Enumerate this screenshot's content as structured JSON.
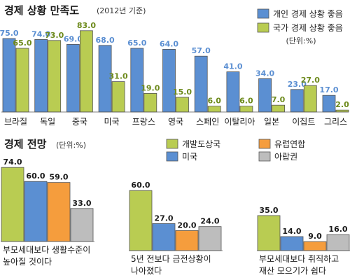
{
  "colors": {
    "personal": "#5b8fd2",
    "national": "#b9cc52",
    "developing": "#b9cc52",
    "us": "#5b8fd2",
    "eu": "#f59d3d",
    "arab": "#bdbdbd",
    "personal_label": "#5b8fd2",
    "national_label": "#6d8a1c",
    "eu_label": "#1a1a1a"
  },
  "chart_data": [
    {
      "type": "bar",
      "title": "경제 상황 만족도",
      "subtitle": "(2012년 기준)",
      "unit": "(단위:%)",
      "legend_position": "top-right",
      "categories": [
        "브라질",
        "독일",
        "중국",
        "미국",
        "프랑스",
        "영국",
        "스페인",
        "이탈리아",
        "일본",
        "이집트",
        "그리스"
      ],
      "series": [
        {
          "name": "개인 경제 상황 좋음",
          "values": [
            75.0,
            74.0,
            69.0,
            68.0,
            65.0,
            64.0,
            57.0,
            41.0,
            34.0,
            23.0,
            17.0
          ],
          "labels": [
            "75.0",
            "74.0",
            "69.0",
            "68.0",
            "65.0",
            "64.0",
            "57.0",
            "41.0",
            "34.0",
            "23.0",
            "17.0"
          ]
        },
        {
          "name": "국가 경제 상황 좋음",
          "values": [
            65.0,
            73.0,
            83.0,
            31.0,
            19.0,
            15.0,
            6.0,
            6.0,
            7.0,
            27.0,
            2.0
          ],
          "labels": [
            "65.0",
            "73.0",
            "83.0",
            "31.0",
            "19.0",
            "15.0",
            "6.0",
            "6.0",
            "7.0",
            "27.0",
            "2.0"
          ]
        }
      ],
      "ylim": [
        0,
        90
      ],
      "grid": false
    },
    {
      "type": "bar",
      "title": "경제 전망",
      "subtitle": "(단위:%)",
      "legend_position": "top-right",
      "categories": [
        "부모세대보다 생활수준이 높아질 것이다",
        "5년 전보다 금전상황이 나아졌다",
        "부모세대보다 취직하고 재산 모으기가 쉽다"
      ],
      "category_lines": [
        [
          "부모세대보다 생활수준이",
          "높아질 것이다"
        ],
        [
          "5년 전보다 금전상황이",
          "나아졌다"
        ],
        [
          "부모세대보다 취직하고",
          "재산 모으기가 쉽다"
        ]
      ],
      "series": [
        {
          "name": "개발도상국",
          "values": [
            74.0,
            60.0,
            35.0
          ],
          "labels": [
            "74.0",
            "60.0",
            "35.0"
          ]
        },
        {
          "name": "미국",
          "values": [
            60.0,
            27.0,
            14.0
          ],
          "labels": [
            "60.0",
            "27.0",
            "14.0"
          ]
        },
        {
          "name": "유럽연합",
          "values": [
            59.0,
            20.0,
            9.0
          ],
          "labels": [
            "59.0",
            "20.0",
            "9.0"
          ]
        },
        {
          "name": "아랍권",
          "values": [
            33.0,
            24.0,
            16.0
          ],
          "labels": [
            "33.0",
            "24.0",
            "16.0"
          ]
        }
      ],
      "ylim": [
        0,
        80
      ],
      "grid": false
    }
  ]
}
